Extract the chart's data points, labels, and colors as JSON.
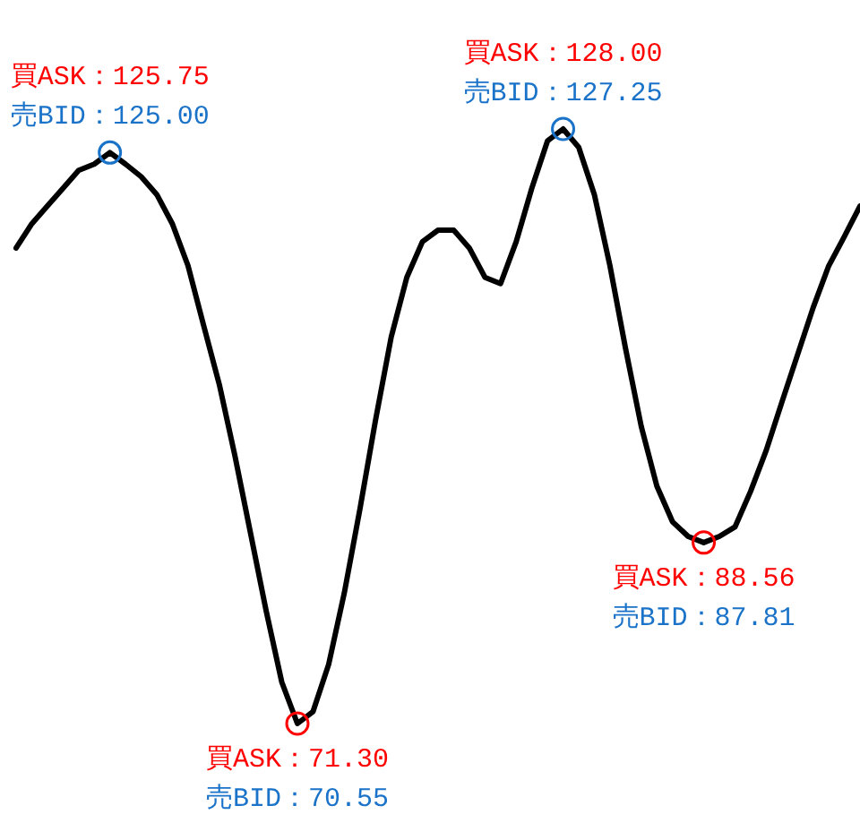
{
  "chart_data": {
    "type": "line",
    "legend": false,
    "categories": [
      null,
      null,
      null,
      null,
      null,
      null,
      null,
      null,
      null,
      null,
      null,
      null,
      null,
      null,
      null,
      null,
      null,
      null,
      null,
      null,
      null,
      null,
      null,
      null,
      null,
      null,
      null,
      null,
      null,
      null,
      null,
      null,
      null,
      null,
      null,
      null,
      null,
      null,
      null,
      null,
      null,
      null,
      null,
      null,
      null,
      null,
      null,
      null,
      null,
      null,
      null,
      null,
      null,
      null,
      null
    ],
    "series": [
      {
        "color": "#000000",
        "marker": "none",
        "line_style": "solid",
        "values": [
          115.9,
          118.2,
          119.9,
          121.6,
          123.3,
          123.9,
          125.0,
          123.9,
          122.7,
          121.0,
          118.2,
          114.2,
          108.5,
          102.9,
          96.1,
          88.7,
          81.3,
          74.5,
          70.55,
          71.7,
          76.2,
          83.0,
          91.0,
          99.5,
          107.4,
          113.1,
          116.5,
          117.6,
          117.6,
          115.9,
          113.1,
          112.5,
          116.5,
          121.6,
          126.1,
          127.25,
          125.5,
          121.0,
          114.2,
          106.3,
          98.9,
          93.2,
          89.8,
          88.4,
          87.81,
          88.4,
          89.3,
          92.7,
          96.6,
          101.2,
          105.7,
          110.2,
          114.2,
          117.0,
          119.9
        ],
        "colors": [
          null,
          null,
          null,
          null,
          null,
          null,
          "#1a73c8",
          null,
          null,
          null,
          null,
          null,
          null,
          null,
          null,
          null,
          null,
          null,
          "#ff0000",
          null,
          null,
          null,
          null,
          null,
          null,
          null,
          null,
          null,
          null,
          null,
          null,
          null,
          null,
          null,
          null,
          "#1a73c8",
          null,
          null,
          null,
          null,
          null,
          null,
          null,
          null,
          "#ff0000",
          null,
          null,
          null,
          null,
          null,
          null,
          null,
          null,
          null,
          null
        ],
        "value_labels": [
          null,
          null,
          null,
          null,
          null,
          null,
          "買ASK：125.75\n売BID：125.00",
          null,
          null,
          null,
          null,
          null,
          null,
          null,
          null,
          null,
          null,
          null,
          "買ASK：71.30\n売BID：70.55",
          null,
          null,
          null,
          null,
          null,
          null,
          null,
          null,
          null,
          null,
          null,
          null,
          null,
          null,
          null,
          null,
          "買ASK：128.00\n売BID：127.25",
          null,
          null,
          null,
          null,
          null,
          null,
          null,
          null,
          "買ASK：88.56\n売BID：87.81",
          null,
          null,
          null,
          null,
          null,
          null,
          null,
          null,
          null,
          null
        ]
      }
    ]
  }
}
